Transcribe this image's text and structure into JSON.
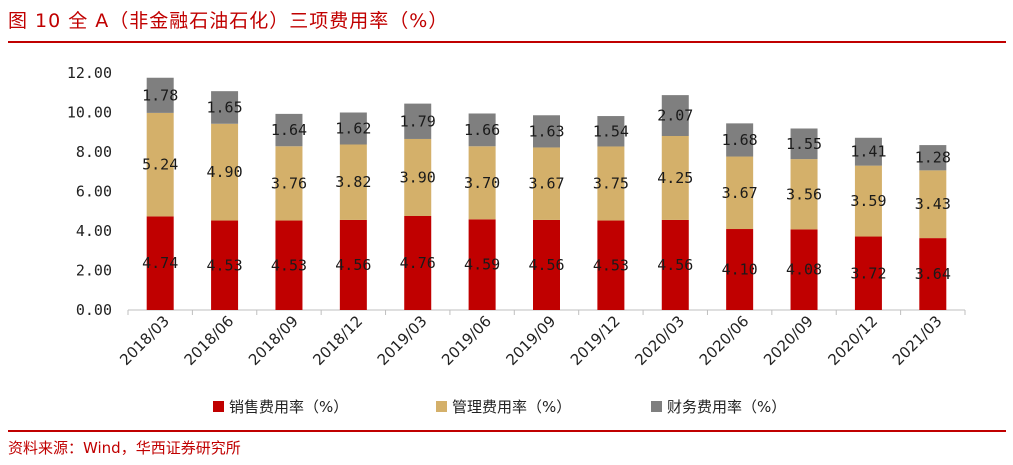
{
  "title": "图 10 全 A（非金融石油石化）三项费用率（%）",
  "source": "资料来源：Wind，华西证券研究所",
  "colors": {
    "accent": "#c00000",
    "sales": "#c00000",
    "admin": "#d4b06a",
    "finance": "#7f7f7f"
  },
  "chart_data": {
    "type": "bar",
    "stacked": true,
    "categories": [
      "2018/03",
      "2018/06",
      "2018/09",
      "2018/12",
      "2019/03",
      "2019/06",
      "2019/09",
      "2019/12",
      "2020/03",
      "2020/06",
      "2020/09",
      "2020/12",
      "2021/03"
    ],
    "series": [
      {
        "name": "销售费用率（%）",
        "values": [
          4.74,
          4.53,
          4.53,
          4.56,
          4.76,
          4.59,
          4.56,
          4.53,
          4.56,
          4.1,
          4.08,
          3.72,
          3.64
        ]
      },
      {
        "name": "管理费用率（%）",
        "values": [
          5.24,
          4.9,
          3.76,
          3.82,
          3.9,
          3.7,
          3.67,
          3.75,
          4.25,
          3.67,
          3.56,
          3.59,
          3.43
        ]
      },
      {
        "name": "财务费用率（%）",
        "values": [
          1.78,
          1.65,
          1.64,
          1.62,
          1.79,
          1.66,
          1.63,
          1.54,
          2.07,
          1.68,
          1.55,
          1.41,
          1.28
        ]
      }
    ],
    "ylim": [
      0,
      12
    ],
    "yticks": [
      "0.00",
      "2.00",
      "4.00",
      "6.00",
      "8.00",
      "10.00",
      "12.00"
    ],
    "legend": "bottom",
    "grid": false
  }
}
